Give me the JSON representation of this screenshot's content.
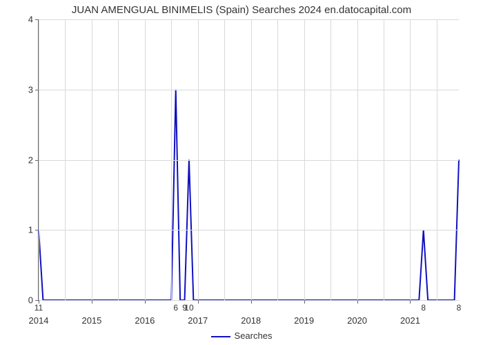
{
  "chart": {
    "type": "line",
    "title": "JUAN AMENGUAL BINIMELIS (Spain) Searches 2024 en.datocapital.com",
    "title_fontsize": 15,
    "background_color": "#ffffff",
    "grid_color": "#d9d9d9",
    "axis_color": "#666666",
    "text_color": "#333333",
    "series": {
      "name": "Searches",
      "color": "#1010c0",
      "line_width": 2,
      "x": [
        0,
        1,
        2,
        3,
        4,
        5,
        6,
        7,
        8,
        9,
        10,
        11,
        12,
        13,
        14,
        15,
        16,
        17,
        18,
        19,
        20,
        21,
        22,
        23,
        24,
        25,
        26,
        27,
        28,
        29,
        30,
        31,
        32,
        33,
        34,
        35,
        36,
        37,
        38,
        39,
        40,
        41,
        42,
        43,
        44,
        45,
        46,
        47,
        48,
        49,
        50,
        51,
        52,
        53,
        54,
        55,
        56,
        57,
        58,
        59,
        60,
        61,
        62,
        63,
        64,
        65,
        66,
        67,
        68,
        69,
        70,
        71,
        72,
        73,
        74,
        75,
        76,
        77,
        78,
        79,
        80,
        81,
        82,
        83,
        84,
        85,
        86,
        87,
        88,
        89,
        90,
        91,
        92,
        93,
        94,
        95
      ],
      "y": [
        1,
        0,
        0,
        0,
        0,
        0,
        0,
        0,
        0,
        0,
        0,
        0,
        0,
        0,
        0,
        0,
        0,
        0,
        0,
        0,
        0,
        0,
        0,
        0,
        0,
        0,
        0,
        0,
        0,
        0,
        0,
        3,
        0,
        0,
        2,
        0,
        0,
        0,
        0,
        0,
        0,
        0,
        0,
        0,
        0,
        0,
        0,
        0,
        0,
        0,
        0,
        0,
        0,
        0,
        0,
        0,
        0,
        0,
        0,
        0,
        0,
        0,
        0,
        0,
        0,
        0,
        0,
        0,
        0,
        0,
        0,
        0,
        0,
        0,
        0,
        0,
        0,
        0,
        0,
        0,
        0,
        0,
        0,
        0,
        0,
        0,
        0,
        1,
        0,
        0,
        0,
        0,
        0,
        0,
        0,
        2
      ]
    },
    "xlim": [
      0,
      95
    ],
    "ylim": [
      0,
      4
    ],
    "y_ticks": [
      0,
      1,
      2,
      3,
      4
    ],
    "x_year_ticks": [
      {
        "x": 0,
        "label": "2014"
      },
      {
        "x": 12,
        "label": "2015"
      },
      {
        "x": 24,
        "label": "2016"
      },
      {
        "x": 36,
        "label": "2017"
      },
      {
        "x": 48,
        "label": "2018"
      },
      {
        "x": 60,
        "label": "2019"
      },
      {
        "x": 72,
        "label": "2020"
      },
      {
        "x": 84,
        "label": "2021"
      }
    ],
    "x_minor_grid": [
      6,
      18,
      30,
      42,
      54,
      66,
      78,
      90
    ],
    "point_labels": [
      {
        "x": 0,
        "label": "11"
      },
      {
        "x": 31,
        "label": "6"
      },
      {
        "x": 33,
        "label": "9"
      },
      {
        "x": 34,
        "label": "10"
      },
      {
        "x": 87,
        "label": "8"
      },
      {
        "x": 95,
        "label": "8"
      }
    ],
    "legend_label": "Searches"
  }
}
